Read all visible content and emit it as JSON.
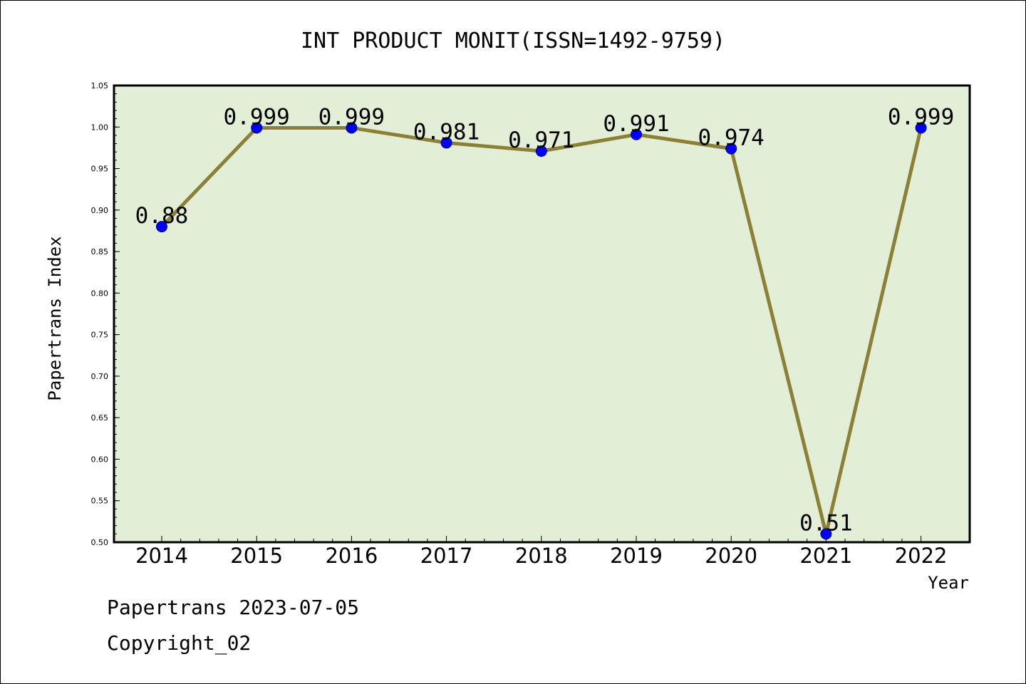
{
  "chart_data": {
    "type": "line",
    "title": "INT PRODUCT MONIT(ISSN=1492-9759)",
    "xlabel": "Year",
    "ylabel": "Papertrans Index",
    "categories": [
      "2014",
      "2015",
      "2016",
      "2017",
      "2018",
      "2019",
      "2020",
      "2021",
      "2022"
    ],
    "values": [
      0.88,
      0.999,
      0.999,
      0.981,
      0.971,
      0.991,
      0.974,
      0.51,
      0.999
    ],
    "data_labels": [
      "0.88",
      "0.999",
      "0.999",
      "0.981",
      "0.971",
      "0.991",
      "0.974",
      "0.51",
      "0.999"
    ],
    "ylim": [
      0.5,
      1.05
    ],
    "yticks": [
      "0.50",
      "0.55",
      "0.60",
      "0.65",
      "0.70",
      "0.75",
      "0.80",
      "0.85",
      "0.90",
      "0.95",
      "1.00",
      "1.05"
    ],
    "grid": false,
    "plot_background": "#e2efd6",
    "line_color": "#8b8035",
    "marker_color": "#0000ff"
  },
  "footer": {
    "line1": "Papertrans 2023-07-05",
    "line2": "Copyright_02"
  }
}
